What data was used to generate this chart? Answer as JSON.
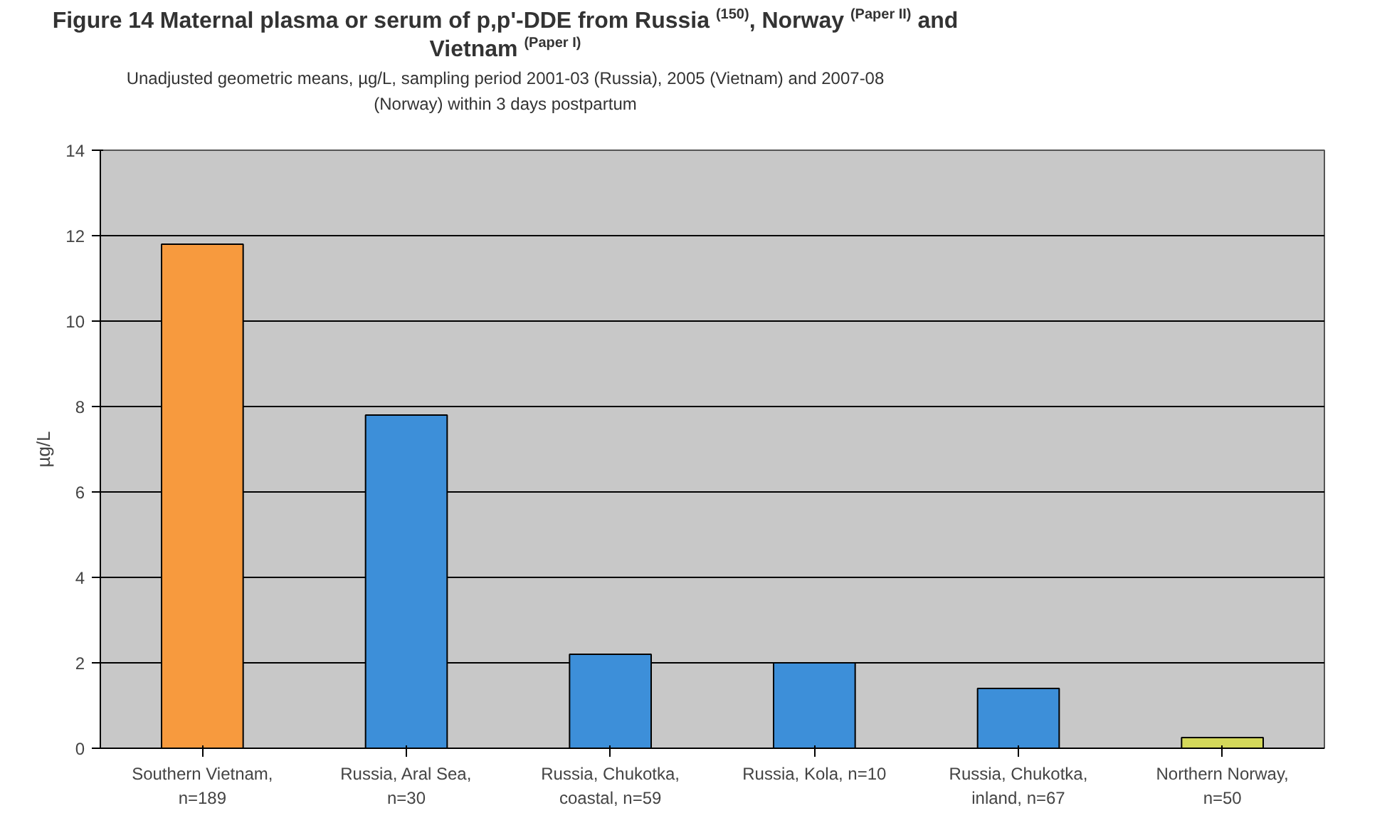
{
  "chart_data": {
    "type": "bar",
    "title": "Figure 14 Maternal plasma or serum of p,p'-DDE from Russia $^{(150)}$, Norway $^{(Paper II)}$ and Vietnam $^{(Paper I)}$",
    "subtitle": "Unadjusted geometric means, µg/L, sampling period 2001-03 (Russia), 2005 (Vietnam) and 2007-08\n(Norway) within 3 days postpartum",
    "ylabel": "µg/L",
    "categories": [
      "Southern Vietnam,\nn=189",
      "Russia, Aral Sea,\nn=30",
      "Russia, Chukotka,\ncoastal, n=59",
      "Russia, Kola, n=10",
      "Russia, Chukotka,\ninland, n=67",
      "Northern Norway,\nn=50"
    ],
    "values": [
      11.8,
      7.8,
      2.2,
      2.0,
      1.4,
      0.25
    ],
    "colors": [
      "#f79a3e",
      "#3d8fd9",
      "#3d8fd9",
      "#3d8fd9",
      "#3d8fd9",
      "#d4d85a"
    ],
    "ylim": [
      0,
      14
    ],
    "yticks": [
      0,
      2,
      4,
      6,
      8,
      10,
      12,
      14
    ],
    "grid": "y"
  }
}
